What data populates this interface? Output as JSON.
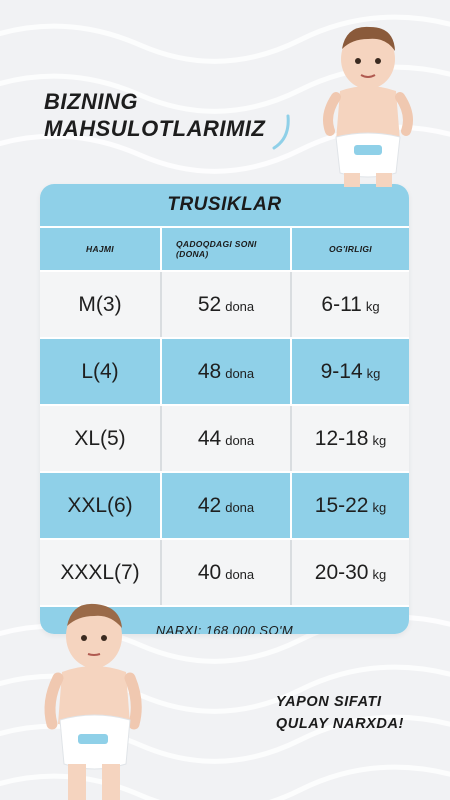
{
  "heading": {
    "line1": "BIZNING",
    "line2": "MAHSULOTLARIMIZ"
  },
  "table": {
    "title": "TRUSIKLAR",
    "columns": [
      "HAJMI",
      "QADOQDAGI SONI (DONA)",
      "OG'IRLIGI"
    ],
    "rows": [
      {
        "size": "M(3)",
        "count": "52",
        "count_unit": "dona",
        "weight": "6-11",
        "weight_unit": "kg",
        "style": "white"
      },
      {
        "size": "L(4)",
        "count": "48",
        "count_unit": "dona",
        "weight": "9-14",
        "weight_unit": "kg",
        "style": "blue"
      },
      {
        "size": "XL(5)",
        "count": "44",
        "count_unit": "dona",
        "weight": "12-18",
        "weight_unit": "kg",
        "style": "white"
      },
      {
        "size": "XXL(6)",
        "count": "42",
        "count_unit": "dona",
        "weight": "15-22",
        "weight_unit": "kg",
        "style": "blue"
      },
      {
        "size": "XXXL(7)",
        "count": "40",
        "count_unit": "dona",
        "weight": "20-30",
        "weight_unit": "kg",
        "style": "white"
      }
    ],
    "price": "NARXI: 168 000 SO'M"
  },
  "slogan": {
    "line1": "YAPON SIFATI",
    "line2": "QULAY NARXDA!"
  },
  "colors": {
    "accent": "#8fd0e8",
    "background": "#f1f2f4",
    "text": "#1b1b1b"
  }
}
